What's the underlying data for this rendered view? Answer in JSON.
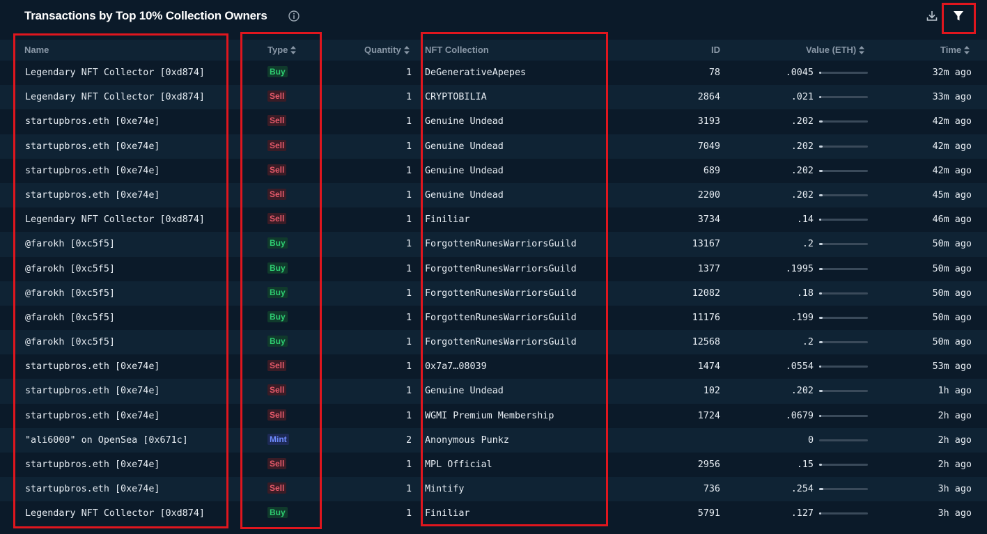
{
  "title": "Transactions by Top 10% Collection Owners",
  "icons": {
    "info": "info-icon",
    "download": "download-icon",
    "filter": "filter-icon",
    "sort": "sort-icon"
  },
  "colors": {
    "background": "#0b1a29",
    "row_alt": "#0f2334",
    "buy": "#2ecc71",
    "sell": "#e55a6a",
    "mint": "#6f8cff",
    "annotation": "#e0161e"
  },
  "columns": {
    "name": "Name",
    "type": "Type",
    "quantity": "Quantity",
    "collection": "NFT Collection",
    "id": "ID",
    "value": "Value (ETH)",
    "time": "Time"
  },
  "rows": [
    {
      "name": "Legendary NFT Collector [0xd874]",
      "type": "Buy",
      "quantity": "1",
      "collection": "DeGenerativeApepes",
      "id": "78",
      "value": ".0045",
      "value_num": 0.0045,
      "time": "32m ago"
    },
    {
      "name": "Legendary NFT Collector [0xd874]",
      "type": "Sell",
      "quantity": "1",
      "collection": "CRYPTOBILIA",
      "id": "2864",
      "value": ".021",
      "value_num": 0.021,
      "time": "33m ago"
    },
    {
      "name": "startupbros.eth [0xe74e]",
      "type": "Sell",
      "quantity": "1",
      "collection": "Genuine Undead",
      "id": "3193",
      "value": ".202",
      "value_num": 0.202,
      "time": "42m ago"
    },
    {
      "name": "startupbros.eth [0xe74e]",
      "type": "Sell",
      "quantity": "1",
      "collection": "Genuine Undead",
      "id": "7049",
      "value": ".202",
      "value_num": 0.202,
      "time": "42m ago"
    },
    {
      "name": "startupbros.eth [0xe74e]",
      "type": "Sell",
      "quantity": "1",
      "collection": "Genuine Undead",
      "id": "689",
      "value": ".202",
      "value_num": 0.202,
      "time": "42m ago"
    },
    {
      "name": "startupbros.eth [0xe74e]",
      "type": "Sell",
      "quantity": "1",
      "collection": "Genuine Undead",
      "id": "2200",
      "value": ".202",
      "value_num": 0.202,
      "time": "45m ago"
    },
    {
      "name": "Legendary NFT Collector [0xd874]",
      "type": "Sell",
      "quantity": "1",
      "collection": "Finiliar",
      "id": "3734",
      "value": ".14",
      "value_num": 0.14,
      "time": "46m ago"
    },
    {
      "name": "@farokh [0xc5f5]",
      "type": "Buy",
      "quantity": "1",
      "collection": "ForgottenRunesWarriorsGuild",
      "id": "13167",
      "value": ".2",
      "value_num": 0.2,
      "time": "50m ago"
    },
    {
      "name": "@farokh [0xc5f5]",
      "type": "Buy",
      "quantity": "1",
      "collection": "ForgottenRunesWarriorsGuild",
      "id": "1377",
      "value": ".1995",
      "value_num": 0.1995,
      "time": "50m ago"
    },
    {
      "name": "@farokh [0xc5f5]",
      "type": "Buy",
      "quantity": "1",
      "collection": "ForgottenRunesWarriorsGuild",
      "id": "12082",
      "value": ".18",
      "value_num": 0.18,
      "time": "50m ago"
    },
    {
      "name": "@farokh [0xc5f5]",
      "type": "Buy",
      "quantity": "1",
      "collection": "ForgottenRunesWarriorsGuild",
      "id": "11176",
      "value": ".199",
      "value_num": 0.199,
      "time": "50m ago"
    },
    {
      "name": "@farokh [0xc5f5]",
      "type": "Buy",
      "quantity": "1",
      "collection": "ForgottenRunesWarriorsGuild",
      "id": "12568",
      "value": ".2",
      "value_num": 0.2,
      "time": "50m ago"
    },
    {
      "name": "startupbros.eth [0xe74e]",
      "type": "Sell",
      "quantity": "1",
      "collection": "0x7a7…08039",
      "id": "1474",
      "value": ".0554",
      "value_num": 0.0554,
      "time": "53m ago"
    },
    {
      "name": "startupbros.eth [0xe74e]",
      "type": "Sell",
      "quantity": "1",
      "collection": "Genuine Undead",
      "id": "102",
      "value": ".202",
      "value_num": 0.202,
      "time": "1h ago"
    },
    {
      "name": "startupbros.eth [0xe74e]",
      "type": "Sell",
      "quantity": "1",
      "collection": "WGMI Premium Membership",
      "id": "1724",
      "value": ".0679",
      "value_num": 0.0679,
      "time": "2h ago"
    },
    {
      "name": "\"ali6000\" on OpenSea [0x671c]",
      "type": "Mint",
      "quantity": "2",
      "collection": "Anonymous Punkz",
      "id": "",
      "value": "0",
      "value_num": 0,
      "time": "2h ago"
    },
    {
      "name": "startupbros.eth [0xe74e]",
      "type": "Sell",
      "quantity": "1",
      "collection": "MPL Official",
      "id": "2956",
      "value": ".15",
      "value_num": 0.15,
      "time": "2h ago"
    },
    {
      "name": "startupbros.eth [0xe74e]",
      "type": "Sell",
      "quantity": "1",
      "collection": "Mintify",
      "id": "736",
      "value": ".254",
      "value_num": 0.254,
      "time": "3h ago"
    },
    {
      "name": "Legendary NFT Collector [0xd874]",
      "type": "Buy",
      "quantity": "1",
      "collection": "Finiliar",
      "id": "5791",
      "value": ".127",
      "value_num": 0.127,
      "time": "3h ago"
    }
  ],
  "value_scale_max": 3.0
}
